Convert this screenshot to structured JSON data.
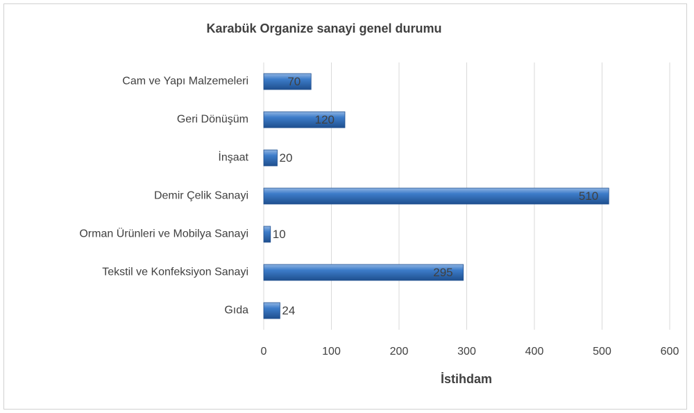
{
  "chart_data": {
    "type": "bar",
    "orientation": "horizontal",
    "title": "Karabük Organize sanayi genel durumu",
    "x_label": "İstihdam",
    "categories": [
      "Cam ve Yapı Malzemeleri",
      "Geri Dönüşüm",
      "İnşaat",
      "Demir Çelik Sanayi",
      "Orman Ürünleri ve Mobilya Sanayi",
      "Tekstil ve Konfeksiyon Sanayi",
      "Gıda"
    ],
    "values": [
      70,
      120,
      20,
      510,
      10,
      295,
      24
    ],
    "color": "#2e6db4",
    "xlim": [
      0,
      600
    ],
    "xticks": [
      0,
      100,
      200,
      300,
      400,
      500,
      600
    ],
    "grid": true
  }
}
